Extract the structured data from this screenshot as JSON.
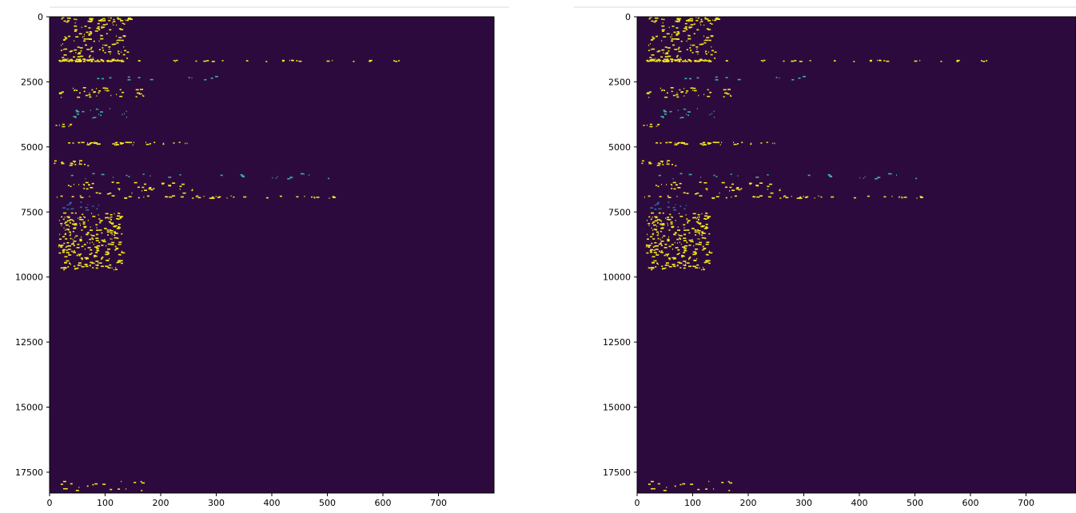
{
  "figure": {
    "background": "#ffffff",
    "colormap": "viridis",
    "background_color": "#2d0a3e",
    "mark_colors": {
      "high": "#f5e61f",
      "mid": "#3bb3a0",
      "low": "#2f6f9a"
    }
  },
  "chart_data": [
    {
      "type": "heatmap",
      "title": "",
      "xlabel": "",
      "ylabel": "",
      "xlim": [
        0,
        800
      ],
      "ylim": [
        18300,
        0
      ],
      "x_ticks": [
        "0",
        "100",
        "200",
        "300",
        "400",
        "500",
        "600",
        "700"
      ],
      "y_ticks": [
        "0",
        "2500",
        "5000",
        "7500",
        "10000",
        "12500",
        "15000",
        "17500"
      ],
      "y_inverted": true,
      "grid": false
    },
    {
      "type": "heatmap",
      "title": "",
      "xlabel": "",
      "ylabel": "",
      "xlim": [
        0,
        790
      ],
      "ylim": [
        18300,
        0
      ],
      "x_ticks": [
        "0",
        "100",
        "200",
        "300",
        "400",
        "500",
        "600",
        "700"
      ],
      "y_ticks": [
        "0",
        "2500",
        "5000",
        "7500",
        "10000",
        "12500",
        "15000",
        "17500"
      ],
      "y_inverted": true,
      "grid": false
    }
  ]
}
